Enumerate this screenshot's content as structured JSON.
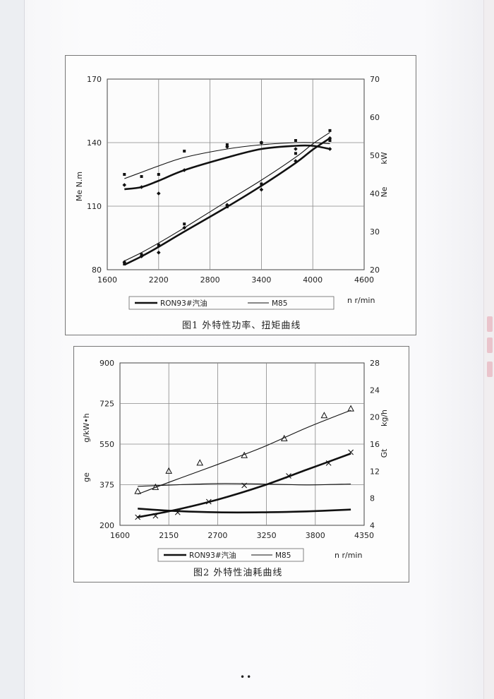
{
  "page": {
    "footer": "••"
  },
  "chart_data": [
    {
      "id": "fig1",
      "type": "line",
      "caption": "图1   外特性功率、扭矩曲线",
      "xlabel": "n   r/min",
      "ylabel_left": "Me  N.m",
      "ylabel_right": "Ne",
      "unit_right": "kW",
      "xlim": [
        1600,
        4600
      ],
      "xticks": [
        1600,
        2200,
        2800,
        3400,
        4000,
        4600
      ],
      "ylim_left": [
        80,
        170
      ],
      "yticks_left": [
        80,
        110,
        140,
        170
      ],
      "ylim_right": [
        20,
        70
      ],
      "yticks_right": [
        20,
        30,
        40,
        50,
        60,
        70
      ],
      "grid": true,
      "legend": {
        "position": "bottom",
        "entries": [
          "RON93#汽油",
          "M85"
        ]
      },
      "series": [
        {
          "name": "RON93#汽油",
          "quantity": "Me",
          "axis": "left",
          "style": "thick",
          "x": [
            1800,
            2000,
            2200,
            2500,
            3000,
            3400,
            3800,
            4000,
            4200
          ],
          "y": [
            118,
            119,
            122,
            127,
            133,
            137,
            138.5,
            138.5,
            137
          ],
          "points_x": [
            1800,
            2000,
            2200,
            2500,
            3000,
            3400,
            3800,
            4200
          ],
          "points_y": [
            120,
            119,
            116,
            127,
            138,
            140,
            137,
            137
          ]
        },
        {
          "name": "M85",
          "quantity": "Me",
          "axis": "left",
          "style": "thin",
          "x": [
            1800,
            2000,
            2200,
            2500,
            3000,
            3400,
            3800,
            4000,
            4200
          ],
          "y": [
            123,
            126,
            129,
            133,
            137,
            139,
            140,
            140,
            139.5
          ],
          "points_x": [
            1800,
            2000,
            2200,
            2500,
            3000,
            3400,
            3800,
            4200
          ],
          "points_y": [
            125,
            124,
            125,
            136,
            139,
            140,
            141,
            141
          ]
        },
        {
          "name": "RON93#汽油",
          "quantity": "Ne",
          "axis": "right",
          "style": "thick",
          "x": [
            1800,
            2000,
            2200,
            2500,
            3000,
            3400,
            3800,
            4000,
            4200
          ],
          "y": [
            21.3,
            23.5,
            26,
            30,
            36.5,
            42,
            48,
            51.5,
            54.5
          ],
          "points_x": [
            1800,
            2000,
            2200,
            2500,
            3000,
            3400,
            3800,
            4200
          ],
          "points_y": [
            22,
            23.5,
            24.5,
            31,
            37,
            41,
            48.5,
            54.5
          ]
        },
        {
          "name": "M85",
          "quantity": "Ne",
          "axis": "right",
          "style": "thin",
          "x": [
            1800,
            2000,
            2200,
            2500,
            3000,
            3400,
            3800,
            4000,
            4200
          ],
          "y": [
            22.3,
            24.5,
            27,
            31,
            38,
            43.5,
            49.5,
            53,
            56
          ],
          "points_x": [
            1800,
            2000,
            2200,
            2500,
            3000,
            3400,
            3800,
            4200
          ],
          "points_y": [
            21.5,
            24,
            26.5,
            32,
            36.5,
            42.5,
            50.5,
            56.5
          ]
        }
      ]
    },
    {
      "id": "fig2",
      "type": "line",
      "caption": "图2   外特性油耗曲线",
      "xlabel": "n    r/min",
      "ylabel_left": "ge",
      "unit_left": "g/kW•h",
      "ylabel_right": "Gt",
      "unit_right": "kg/h",
      "xlim": [
        1600,
        4350
      ],
      "xticks": [
        1600,
        2150,
        2700,
        3250,
        3800,
        4350
      ],
      "ylim_left": [
        200,
        900
      ],
      "yticks_left": [
        200,
        375,
        550,
        725,
        900
      ],
      "ylim_right": [
        4,
        28
      ],
      "yticks_right": [
        4,
        8,
        12,
        16,
        20,
        24,
        28
      ],
      "grid": true,
      "legend": {
        "position": "bottom",
        "entries": [
          "RON93#汽油",
          "M85"
        ]
      },
      "series": [
        {
          "name": "RON93#汽油",
          "quantity": "ge",
          "axis": "left",
          "style": "thick",
          "x": [
            1800,
            2200,
            2700,
            3200,
            3700,
            4200
          ],
          "y": [
            272,
            262,
            256,
            256,
            260,
            268
          ]
        },
        {
          "name": "M85",
          "quantity": "ge",
          "axis": "left",
          "style": "thin",
          "x": [
            1800,
            2200,
            2700,
            3200,
            3700,
            4200
          ],
          "y": [
            368,
            374,
            380,
            378,
            374,
            378
          ]
        },
        {
          "name": "RON93#汽油",
          "quantity": "Gt",
          "axis": "right",
          "style": "thick",
          "marker": "x",
          "x": [
            1800,
            2200,
            2700,
            3200,
            3700,
            4200
          ],
          "y": [
            5.2,
            6.2,
            7.8,
            9.8,
            12.2,
            14.6
          ],
          "points_x": [
            1800,
            2000,
            2250,
            2600,
            3000,
            3500,
            3950,
            4200
          ],
          "points_y": [
            5.2,
            5.4,
            5.9,
            7.5,
            9.9,
            11.3,
            13.2,
            14.8
          ]
        },
        {
          "name": "M85",
          "quantity": "Gt",
          "axis": "right",
          "style": "thin",
          "marker": "triangle",
          "x": [
            1800,
            2200,
            2700,
            3200,
            3700,
            4200
          ],
          "y": [
            8.6,
            10.6,
            13.0,
            15.5,
            18.4,
            21.0
          ],
          "points_x": [
            1800,
            2000,
            2150,
            2500,
            3000,
            3450,
            3900,
            4200
          ],
          "points_y": [
            9.0,
            9.6,
            12.0,
            13.2,
            14.3,
            16.8,
            20.2,
            21.2
          ]
        }
      ]
    }
  ]
}
